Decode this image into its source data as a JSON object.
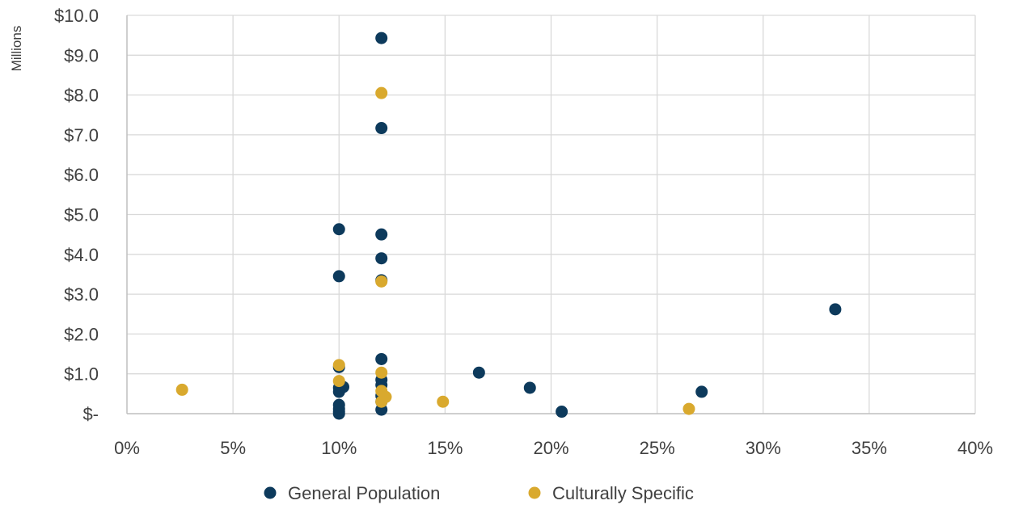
{
  "chart_data": {
    "type": "scatter",
    "title": "",
    "xlabel": "",
    "ylabel": "",
    "y_units_label": "Millions",
    "xlim": [
      0,
      0.4
    ],
    "ylim": [
      0,
      10
    ],
    "x_ticks": [
      0,
      0.05,
      0.1,
      0.15,
      0.2,
      0.25,
      0.3,
      0.35,
      0.4
    ],
    "x_tick_labels": [
      "0%",
      "5%",
      "10%",
      "15%",
      "20%",
      "25%",
      "30%",
      "35%",
      "40%"
    ],
    "y_ticks": [
      0,
      1,
      2,
      3,
      4,
      5,
      6,
      7,
      8,
      9,
      10
    ],
    "y_tick_labels": [
      "$-",
      "$1.0",
      "$2.0",
      "$3.0",
      "$4.0",
      "$5.0",
      "$6.0",
      "$7.0",
      "$8.0",
      "$9.0",
      "$10.0"
    ],
    "grid": true,
    "legend_position": "bottom",
    "series": [
      {
        "name": "General Population",
        "color": "#0d3a5c",
        "points": [
          [
            0.12,
            9.43
          ],
          [
            0.12,
            7.17
          ],
          [
            0.1,
            4.63
          ],
          [
            0.12,
            4.5
          ],
          [
            0.12,
            3.9
          ],
          [
            0.1,
            3.45
          ],
          [
            0.12,
            3.35
          ],
          [
            0.12,
            1.37
          ],
          [
            0.1,
            1.17
          ],
          [
            0.12,
            0.85
          ],
          [
            0.12,
            0.72
          ],
          [
            0.1,
            0.65
          ],
          [
            0.102,
            0.67
          ],
          [
            0.1,
            0.55
          ],
          [
            0.12,
            0.45
          ],
          [
            0.12,
            0.3
          ],
          [
            0.1,
            0.22
          ],
          [
            0.1,
            0.12
          ],
          [
            0.1,
            0.05
          ],
          [
            0.1,
            0.0
          ],
          [
            0.12,
            0.1
          ],
          [
            0.166,
            1.03
          ],
          [
            0.19,
            0.65
          ],
          [
            0.205,
            0.05
          ],
          [
            0.271,
            0.55
          ],
          [
            0.334,
            2.62
          ]
        ]
      },
      {
        "name": "Culturally Specific",
        "color": "#d9a92e",
        "points": [
          [
            0.026,
            0.6
          ],
          [
            0.1,
            1.22
          ],
          [
            0.1,
            0.82
          ],
          [
            0.12,
            8.05
          ],
          [
            0.12,
            3.32
          ],
          [
            0.12,
            1.03
          ],
          [
            0.12,
            0.57
          ],
          [
            0.122,
            0.42
          ],
          [
            0.12,
            0.3
          ],
          [
            0.149,
            0.3
          ],
          [
            0.265,
            0.12
          ]
        ]
      }
    ]
  }
}
